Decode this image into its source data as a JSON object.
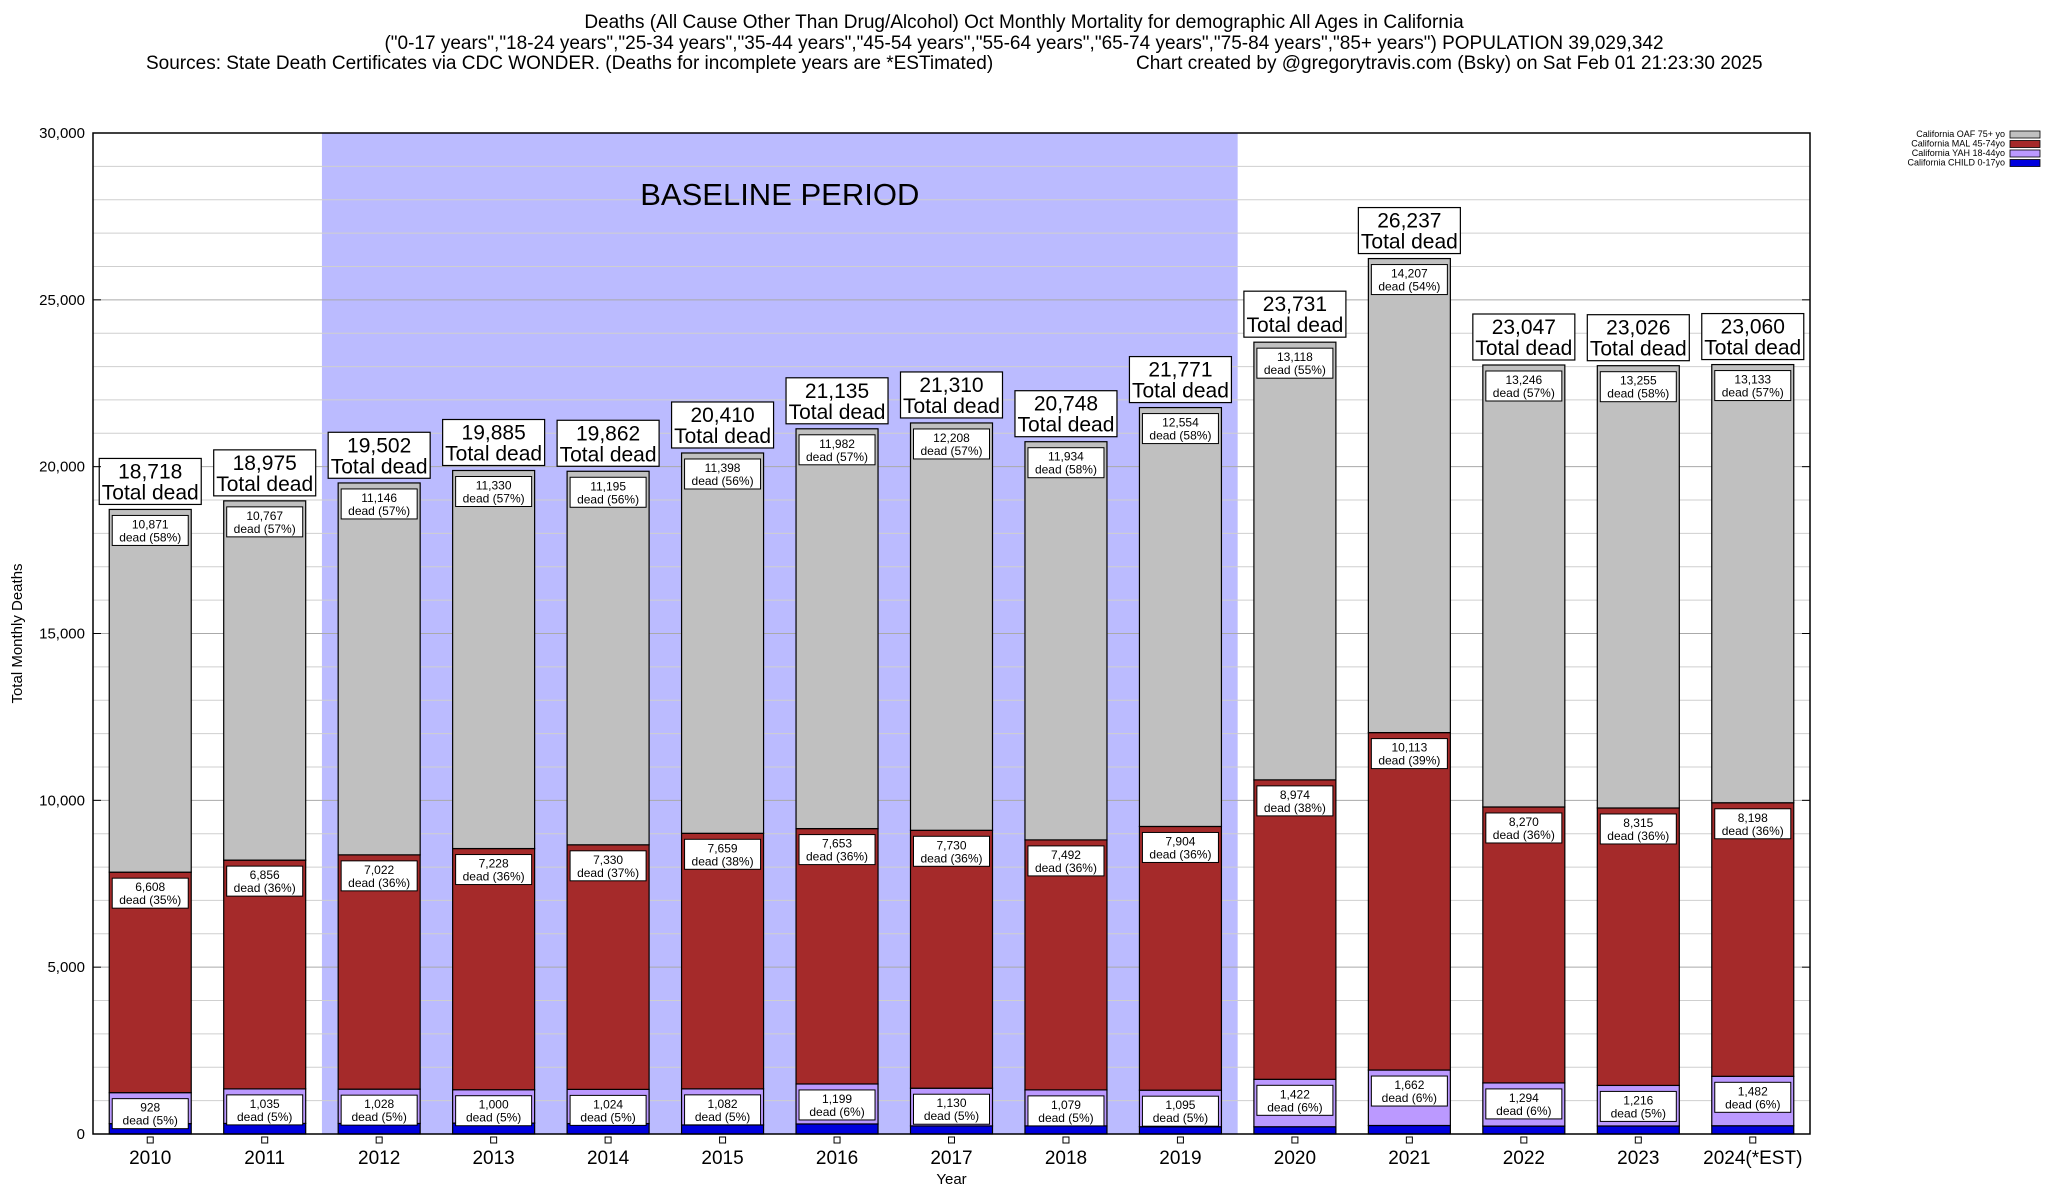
{
  "header": {
    "line1": "Deaths (All Cause Other Than Drug/Alcohol) Oct Monthly Mortality for demographic All Ages in California",
    "line2": "(\"0-17 years\",\"18-24 years\",\"25-34 years\",\"35-44 years\",\"45-54 years\",\"55-64 years\",\"65-74 years\",\"75-84 years\",\"85+ years\") POPULATION 39,029,342",
    "sources": "Sources: State Death Certificates via CDC WONDER. (Deaths for incomplete years are *ESTimated)",
    "credit": "Chart created by @gregorytravis.com (Bsky) on Sat Feb 01 21:23:30 2025"
  },
  "chart_data": {
    "type": "bar",
    "stacked": true,
    "xlabel": "Year",
    "ylabel": "Total Monthly Deaths",
    "ylim": [
      0,
      30000
    ],
    "y_ticks": [
      0,
      5000,
      10000,
      15000,
      20000,
      25000,
      30000
    ],
    "y_tick_labels": [
      "0",
      "5,000",
      "10,000",
      "15,000",
      "20,000",
      "25,000",
      "30,000"
    ],
    "grid": true,
    "legend_position": "top-right",
    "categories": [
      "2010",
      "2011",
      "2012",
      "2013",
      "2014",
      "2015",
      "2016",
      "2017",
      "2018",
      "2019",
      "2020",
      "2021",
      "2022",
      "2023",
      "2024(*EST)"
    ],
    "baseline_period": {
      "label": "BASELINE PERIOD",
      "from": "2012",
      "to": "2019",
      "color": "#bbbbff"
    },
    "series": [
      {
        "name": "California CHILD 0-17yo",
        "color": "#0000dd",
        "values": [
          311,
          317,
          316,
          327,
          313,
          271,
          301,
          242,
          243,
          218,
          217,
          255,
          237,
          240,
          247
        ]
      },
      {
        "name": "California YAH 18-44yo",
        "color": "#bb99ff",
        "values": [
          928,
          1035,
          1028,
          1000,
          1024,
          1082,
          1199,
          1130,
          1079,
          1095,
          1422,
          1662,
          1294,
          1216,
          1482
        ],
        "labels": [
          "928\ndead (5%)",
          "1,035\ndead (5%)",
          "1,028\ndead (5%)",
          "1,000\ndead (5%)",
          "1,024\ndead (5%)",
          "1,082\ndead (5%)",
          "1,199\ndead (6%)",
          "1,130\ndead (5%)",
          "1,079\ndead (5%)",
          "1,095\ndead (5%)",
          "1,422\ndead (6%)",
          "1,662\ndead (6%)",
          "1,294\ndead (6%)",
          "1,216\ndead (5%)",
          "1,482\ndead (6%)"
        ]
      },
      {
        "name": "California MAL 45-74yo",
        "color": "#a52a2a",
        "values": [
          6608,
          6856,
          7022,
          7228,
          7330,
          7659,
          7653,
          7730,
          7492,
          7904,
          8974,
          10113,
          8270,
          8315,
          8198
        ],
        "labels": [
          "6,608\ndead (35%)",
          "6,856\ndead (36%)",
          "7,022\ndead (36%)",
          "7,228\ndead (36%)",
          "7,330\ndead (37%)",
          "7,659\ndead (38%)",
          "7,653\ndead (36%)",
          "7,730\ndead (36%)",
          "7,492\ndead (36%)",
          "7,904\ndead (36%)",
          "8,974\ndead (38%)",
          "10,113\ndead (39%)",
          "8,270\ndead (36%)",
          "8,315\ndead (36%)",
          "8,198\ndead (36%)"
        ]
      },
      {
        "name": "California OAF 75+ yo",
        "color": "#c0c0c0",
        "values": [
          10871,
          10767,
          11146,
          11330,
          11195,
          11398,
          11982,
          12208,
          11934,
          12554,
          13118,
          14207,
          13246,
          13255,
          13133
        ],
        "labels": [
          "10,871\ndead (58%)",
          "10,767\ndead (57%)",
          "11,146\ndead (57%)",
          "11,330\ndead (57%)",
          "11,195\ndead (56%)",
          "11,398\ndead (56%)",
          "11,982\ndead (57%)",
          "12,208\ndead (57%)",
          "11,934\ndead (58%)",
          "12,554\ndead (58%)",
          "13,118\ndead (55%)",
          "14,207\ndead (54%)",
          "13,246\ndead (57%)",
          "13,255\ndead (58%)",
          "13,133\ndead (57%)"
        ]
      }
    ],
    "totals": [
      18718,
      18975,
      19502,
      19885,
      19862,
      20410,
      21135,
      21310,
      20748,
      21771,
      23731,
      26237,
      23047,
      23026,
      23060
    ],
    "total_labels": [
      "18,718\nTotal dead",
      "18,975\nTotal dead",
      "19,502\nTotal dead",
      "19,885\nTotal dead",
      "19,862\nTotal dead",
      "20,410\nTotal dead",
      "21,135\nTotal dead",
      "21,310\nTotal dead",
      "20,748\nTotal dead",
      "21,771\nTotal dead",
      "23,731\nTotal dead",
      "26,237\nTotal dead",
      "23,047\nTotal dead",
      "23,026\nTotal dead",
      "23,060\nTotal dead"
    ]
  }
}
